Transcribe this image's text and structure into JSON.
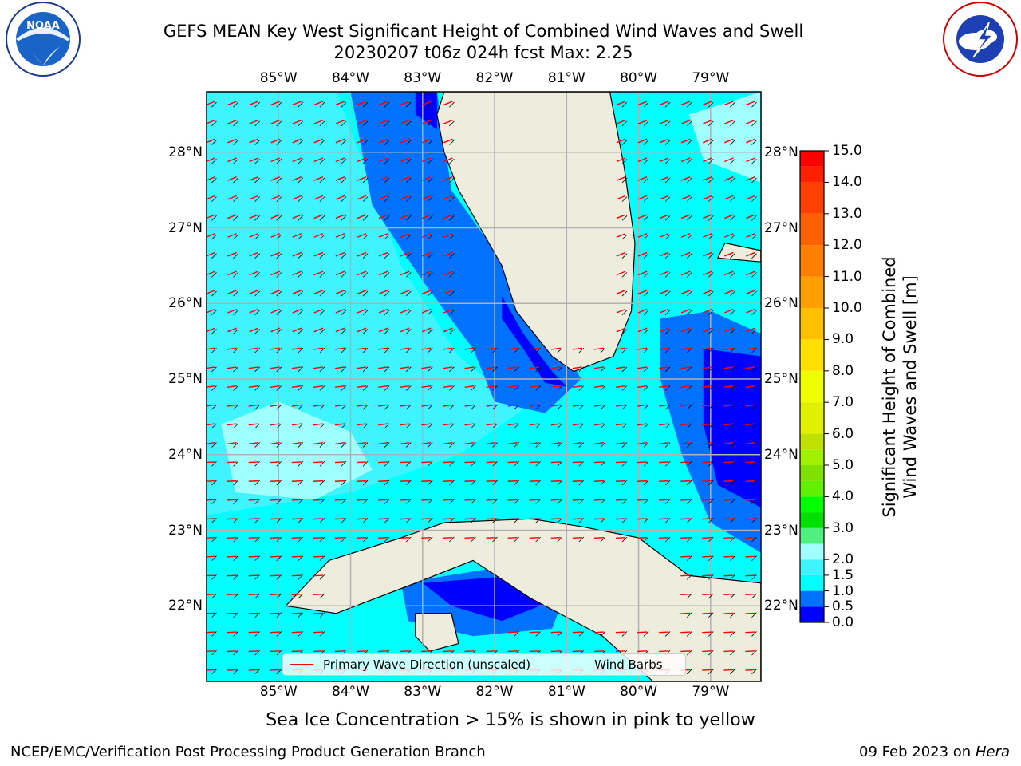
{
  "title": {
    "line1": "GEFS MEAN Key West Significant Height of Combined Wind Waves and Swell",
    "line2": "20230207 t06z 024h fcst   Max: 2.25"
  },
  "logos": {
    "noaa": {
      "text": "NOAA",
      "ring_text": "NATIONAL OCEANIC AND ATMOSPHERIC ADMINISTRATION · U.S. DEPARTMENT OF COMMERCE"
    },
    "nws": {
      "ring_text": "NATIONAL WEATHER SERVICE"
    }
  },
  "map": {
    "lon_range": [
      -86.0,
      -78.3
    ],
    "lat_range": [
      21.0,
      28.8
    ],
    "lon_labels": [
      "85°W",
      "84°W",
      "83°W",
      "82°W",
      "81°W",
      "80°W",
      "79°W"
    ],
    "lon_values": [
      -85,
      -84,
      -83,
      -82,
      -81,
      -80,
      -79
    ],
    "lat_labels": [
      "22°N",
      "23°N",
      "24°N",
      "25°N",
      "26°N",
      "27°N",
      "28°N"
    ],
    "lat_values": [
      22,
      23,
      24,
      25,
      26,
      27,
      28
    ],
    "land_color": "#eeecdc",
    "coast_color": "#000000",
    "grid_color": "#b0b0b0",
    "wave_arrow_color": "#ff0000",
    "barb_color": "#000000"
  },
  "colorbar": {
    "label_line1": "Significant Height of Combined",
    "label_line2": "Wind Waves and Swell [m]",
    "levels": [
      0.0,
      0.5,
      1.0,
      1.5,
      2.0,
      2.5,
      3.0,
      3.5,
      4.0,
      4.5,
      5.0,
      5.5,
      6.0,
      6.5,
      7.0,
      7.5,
      8.0,
      8.5,
      9.0,
      9.5,
      10.0,
      10.5,
      11.0,
      11.5,
      12.0,
      12.5,
      13.0,
      13.5,
      14.0,
      14.5,
      15.0
    ],
    "tick_labels": [
      "0.0",
      "0.5",
      "1.0",
      "1.5",
      "2.0",
      "3.0",
      "4.0",
      "5.0",
      "6.0",
      "7.0",
      "8.0",
      "9.0",
      "10.0",
      "11.0",
      "12.0",
      "13.0",
      "14.0",
      "15.0"
    ],
    "tick_values": [
      0.0,
      0.5,
      1.0,
      1.5,
      2.0,
      3.0,
      4.0,
      5.0,
      6.0,
      7.0,
      8.0,
      9.0,
      10.0,
      11.0,
      12.0,
      13.0,
      14.0,
      15.0
    ],
    "colors": [
      "#0000ff",
      "#0072ff",
      "#00ffff",
      "#40f4ff",
      "#a0ffff",
      "#50f080",
      "#00e000",
      "#00ff00",
      "#60f000",
      "#80e000",
      "#a0f000",
      "#c0e000",
      "#e0f000",
      "#f0ff00",
      "#ffe000",
      "#ffc000",
      "#ffa000",
      "#ff8000",
      "#ff6000",
      "#ff4000",
      "#ff2000",
      "#ff0000"
    ]
  },
  "legend": {
    "wave_label": "Primary Wave Direction (unscaled)",
    "barb_label": "Wind Barbs"
  },
  "footer": {
    "ice_note": "Sea Ice Concentration > 15% is shown in pink to yellow",
    "credit": "NCEP/EMC/Verification Post Processing Product Generation Branch",
    "date": "09 Feb 2023 on",
    "machine": "Hera"
  }
}
